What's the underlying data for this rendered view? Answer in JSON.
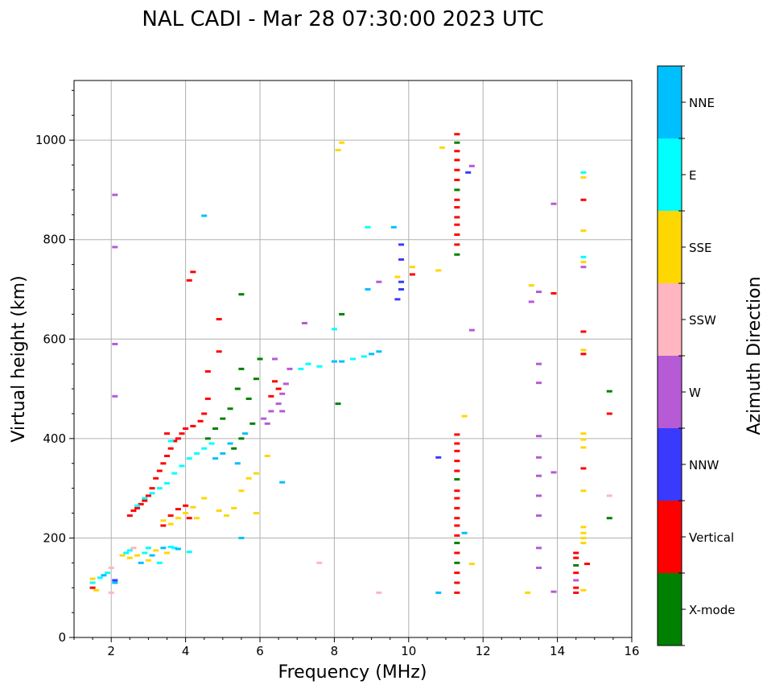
{
  "chart_data": {
    "type": "scatter",
    "title": "NAL CADI - Mar 28 07:30:00 2023 UTC",
    "xlabel": "Frequency (MHz)",
    "ylabel": "Virtual height (km)",
    "xlim": [
      1,
      16
    ],
    "ylim": [
      0,
      1120
    ],
    "xticks": [
      2,
      4,
      6,
      8,
      10,
      12,
      14,
      16
    ],
    "yticks": [
      0,
      200,
      400,
      600,
      800,
      1000
    ],
    "grid": true,
    "colorbar": {
      "label": "Azimuth Direction",
      "categories": [
        "X-mode",
        "Vertical",
        "NNW",
        "W",
        "SSW",
        "SSE",
        "E",
        "NNE"
      ],
      "colors": [
        "#008000",
        "#ff0000",
        "#3a3aff",
        "#b65ad6",
        "#ffb6c1",
        "#ffd700",
        "#00ffff",
        "#00bfff"
      ]
    },
    "points_format": "[frequency_MHz, height_km, direction_index]",
    "points": [
      [
        1.5,
        100,
        1
      ],
      [
        1.5,
        110,
        6
      ],
      [
        1.5,
        118,
        5
      ],
      [
        1.6,
        95,
        5
      ],
      [
        1.7,
        120,
        6
      ],
      [
        1.8,
        125,
        7
      ],
      [
        1.9,
        130,
        6
      ],
      [
        2.0,
        140,
        4
      ],
      [
        2.0,
        90,
        4
      ],
      [
        2.1,
        110,
        7
      ],
      [
        2.1,
        115,
        2
      ],
      [
        2.3,
        165,
        5
      ],
      [
        2.4,
        170,
        6
      ],
      [
        2.5,
        160,
        5
      ],
      [
        2.5,
        175,
        6
      ],
      [
        2.6,
        180,
        4
      ],
      [
        2.7,
        165,
        5
      ],
      [
        2.8,
        150,
        7
      ],
      [
        2.9,
        170,
        6
      ],
      [
        3.0,
        155,
        5
      ],
      [
        3.0,
        180,
        6
      ],
      [
        3.1,
        165,
        7
      ],
      [
        3.2,
        175,
        5
      ],
      [
        3.3,
        150,
        6
      ],
      [
        3.4,
        180,
        7
      ],
      [
        3.5,
        170,
        5
      ],
      [
        3.6,
        182,
        6
      ],
      [
        3.7,
        180,
        6
      ],
      [
        3.8,
        178,
        7
      ],
      [
        4.1,
        172,
        6
      ],
      [
        2.5,
        245,
        1
      ],
      [
        2.6,
        255,
        1
      ],
      [
        2.7,
        260,
        1
      ],
      [
        2.8,
        268,
        1
      ],
      [
        2.9,
        275,
        1
      ],
      [
        3.0,
        285,
        1
      ],
      [
        3.1,
        300,
        1
      ],
      [
        3.2,
        320,
        1
      ],
      [
        3.3,
        335,
        1
      ],
      [
        3.4,
        350,
        1
      ],
      [
        3.5,
        365,
        1
      ],
      [
        3.6,
        380,
        1
      ],
      [
        3.7,
        395,
        1
      ],
      [
        3.5,
        410,
        1
      ],
      [
        3.8,
        400,
        1
      ],
      [
        3.9,
        410,
        1
      ],
      [
        4.0,
        420,
        1
      ],
      [
        4.2,
        425,
        1
      ],
      [
        4.4,
        435,
        1
      ],
      [
        4.5,
        450,
        1
      ],
      [
        4.6,
        480,
        1
      ],
      [
        4.6,
        535,
        1
      ],
      [
        4.9,
        575,
        1
      ],
      [
        2.7,
        265,
        6
      ],
      [
        2.9,
        280,
        6
      ],
      [
        3.1,
        290,
        6
      ],
      [
        3.3,
        300,
        6
      ],
      [
        3.5,
        310,
        6
      ],
      [
        3.7,
        330,
        6
      ],
      [
        3.9,
        345,
        6
      ],
      [
        4.1,
        360,
        6
      ],
      [
        4.3,
        370,
        6
      ],
      [
        4.5,
        380,
        6
      ],
      [
        4.7,
        390,
        6
      ],
      [
        3.6,
        395,
        6
      ],
      [
        3.4,
        235,
        5
      ],
      [
        3.6,
        228,
        5
      ],
      [
        3.8,
        240,
        5
      ],
      [
        4.0,
        250,
        5
      ],
      [
        4.2,
        262,
        5
      ],
      [
        4.3,
        240,
        5
      ],
      [
        4.5,
        280,
        5
      ],
      [
        4.9,
        255,
        5
      ],
      [
        5.1,
        245,
        5
      ],
      [
        5.3,
        260,
        5
      ],
      [
        5.5,
        295,
        5
      ],
      [
        5.7,
        320,
        5
      ],
      [
        5.9,
        330,
        5
      ],
      [
        6.2,
        365,
        5
      ],
      [
        5.9,
        250,
        5
      ],
      [
        3.4,
        225,
        1
      ],
      [
        3.6,
        245,
        1
      ],
      [
        3.8,
        258,
        1
      ],
      [
        4.0,
        265,
        1
      ],
      [
        4.1,
        240,
        1
      ],
      [
        4.6,
        400,
        0
      ],
      [
        4.8,
        420,
        0
      ],
      [
        5.0,
        440,
        0
      ],
      [
        5.2,
        460,
        0
      ],
      [
        5.4,
        500,
        0
      ],
      [
        5.5,
        540,
        0
      ],
      [
        5.7,
        480,
        0
      ],
      [
        5.9,
        520,
        0
      ],
      [
        5.5,
        400,
        0
      ],
      [
        5.3,
        380,
        0
      ],
      [
        6.0,
        560,
        0
      ],
      [
        5.8,
        430,
        0
      ],
      [
        4.8,
        360,
        7
      ],
      [
        5.0,
        370,
        7
      ],
      [
        5.2,
        390,
        7
      ],
      [
        5.4,
        350,
        7
      ],
      [
        5.6,
        410,
        7
      ],
      [
        5.5,
        200,
        7
      ],
      [
        6.1,
        440,
        3
      ],
      [
        6.3,
        455,
        3
      ],
      [
        6.5,
        470,
        3
      ],
      [
        6.6,
        490,
        3
      ],
      [
        6.7,
        510,
        3
      ],
      [
        6.4,
        560,
        3
      ],
      [
        6.8,
        540,
        3
      ],
      [
        6.2,
        430,
        3
      ],
      [
        6.6,
        455,
        3
      ],
      [
        6.6,
        312,
        7
      ],
      [
        6.4,
        515,
        1
      ],
      [
        6.5,
        500,
        1
      ],
      [
        6.3,
        485,
        1
      ],
      [
        7.1,
        540,
        6
      ],
      [
        7.3,
        550,
        6
      ],
      [
        7.6,
        545,
        6
      ],
      [
        8.0,
        555,
        7
      ],
      [
        8.2,
        555,
        7
      ],
      [
        8.5,
        560,
        6
      ],
      [
        8.8,
        565,
        6
      ],
      [
        9.0,
        570,
        7
      ],
      [
        9.2,
        575,
        7
      ],
      [
        8.0,
        620,
        6
      ],
      [
        8.1,
        470,
        0
      ],
      [
        8.2,
        650,
        0
      ],
      [
        8.9,
        700,
        7
      ],
      [
        9.7,
        680,
        2
      ],
      [
        9.8,
        700,
        2
      ],
      [
        9.8,
        715,
        2
      ],
      [
        9.7,
        725,
        5
      ],
      [
        10.1,
        730,
        1
      ],
      [
        10.1,
        745,
        5
      ],
      [
        9.8,
        760,
        2
      ],
      [
        9.8,
        790,
        2
      ],
      [
        8.9,
        825,
        6
      ],
      [
        9.6,
        825,
        7
      ],
      [
        8.1,
        980,
        5
      ],
      [
        8.2,
        995,
        5
      ],
      [
        10.9,
        985,
        5
      ],
      [
        10.8,
        738,
        5
      ],
      [
        11.3,
        90,
        1
      ],
      [
        11.3,
        110,
        1
      ],
      [
        11.3,
        130,
        1
      ],
      [
        11.3,
        150,
        0
      ],
      [
        11.3,
        170,
        1
      ],
      [
        11.3,
        190,
        0
      ],
      [
        11.3,
        205,
        1
      ],
      [
        11.3,
        225,
        1
      ],
      [
        11.3,
        240,
        1
      ],
      [
        11.3,
        260,
        1
      ],
      [
        11.3,
        280,
        1
      ],
      [
        11.3,
        295,
        1
      ],
      [
        11.3,
        318,
        0
      ],
      [
        11.3,
        335,
        1
      ],
      [
        11.3,
        355,
        1
      ],
      [
        11.3,
        375,
        1
      ],
      [
        11.3,
        390,
        1
      ],
      [
        11.3,
        408,
        1
      ],
      [
        11.3,
        770,
        0
      ],
      [
        11.3,
        790,
        1
      ],
      [
        11.3,
        810,
        1
      ],
      [
        11.3,
        830,
        1
      ],
      [
        11.3,
        845,
        1
      ],
      [
        11.3,
        865,
        1
      ],
      [
        11.3,
        880,
        1
      ],
      [
        11.3,
        900,
        0
      ],
      [
        11.3,
        920,
        1
      ],
      [
        11.3,
        940,
        1
      ],
      [
        11.3,
        960,
        1
      ],
      [
        11.3,
        978,
        1
      ],
      [
        11.3,
        995,
        0
      ],
      [
        11.3,
        1012,
        1
      ],
      [
        11.6,
        935,
        2
      ],
      [
        11.7,
        948,
        3
      ],
      [
        11.7,
        618,
        3
      ],
      [
        11.5,
        210,
        7
      ],
      [
        11.7,
        148,
        5
      ],
      [
        11.5,
        445,
        5
      ],
      [
        13.2,
        90,
        5
      ],
      [
        13.3,
        708,
        5
      ],
      [
        13.3,
        675,
        3
      ],
      [
        13.5,
        695,
        3
      ],
      [
        13.5,
        550,
        3
      ],
      [
        13.5,
        512,
        3
      ],
      [
        13.5,
        405,
        3
      ],
      [
        13.5,
        362,
        3
      ],
      [
        13.5,
        325,
        3
      ],
      [
        13.5,
        285,
        3
      ],
      [
        13.5,
        180,
        3
      ],
      [
        13.5,
        140,
        3
      ],
      [
        13.5,
        245,
        3
      ],
      [
        13.9,
        692,
        1
      ],
      [
        13.9,
        332,
        3
      ],
      [
        13.9,
        92,
        3
      ],
      [
        13.9,
        872,
        3
      ],
      [
        14.5,
        90,
        1
      ],
      [
        14.5,
        100,
        1
      ],
      [
        14.5,
        115,
        3
      ],
      [
        14.5,
        130,
        1
      ],
      [
        14.5,
        145,
        0
      ],
      [
        14.5,
        160,
        1
      ],
      [
        14.5,
        170,
        1
      ],
      [
        14.7,
        95,
        5
      ],
      [
        14.7,
        190,
        5
      ],
      [
        14.7,
        200,
        5
      ],
      [
        14.7,
        210,
        5
      ],
      [
        14.7,
        222,
        5
      ],
      [
        14.7,
        295,
        5
      ],
      [
        14.7,
        340,
        1
      ],
      [
        14.7,
        382,
        5
      ],
      [
        14.7,
        398,
        5
      ],
      [
        14.7,
        410,
        5
      ],
      [
        14.7,
        570,
        1
      ],
      [
        14.7,
        578,
        5
      ],
      [
        14.7,
        615,
        1
      ],
      [
        14.7,
        745,
        3
      ],
      [
        14.7,
        755,
        5
      ],
      [
        14.7,
        765,
        6
      ],
      [
        14.7,
        818,
        5
      ],
      [
        14.7,
        880,
        1
      ],
      [
        14.7,
        925,
        5
      ],
      [
        14.7,
        935,
        6
      ],
      [
        14.8,
        148,
        1
      ],
      [
        15.4,
        240,
        0
      ],
      [
        15.4,
        285,
        4
      ],
      [
        15.4,
        450,
        1
      ],
      [
        15.4,
        495,
        0
      ],
      [
        2.1,
        890,
        3
      ],
      [
        2.1,
        785,
        3
      ],
      [
        2.1,
        590,
        3
      ],
      [
        2.1,
        485,
        3
      ],
      [
        4.1,
        718,
        1
      ],
      [
        4.2,
        735,
        1
      ],
      [
        4.5,
        848,
        7
      ],
      [
        4.9,
        640,
        1
      ],
      [
        5.5,
        690,
        0
      ],
      [
        7.2,
        632,
        3
      ],
      [
        7.6,
        150,
        4
      ],
      [
        9.2,
        90,
        4
      ],
      [
        10.8,
        90,
        7
      ],
      [
        10.8,
        362,
        2
      ],
      [
        9.2,
        715,
        3
      ]
    ]
  }
}
